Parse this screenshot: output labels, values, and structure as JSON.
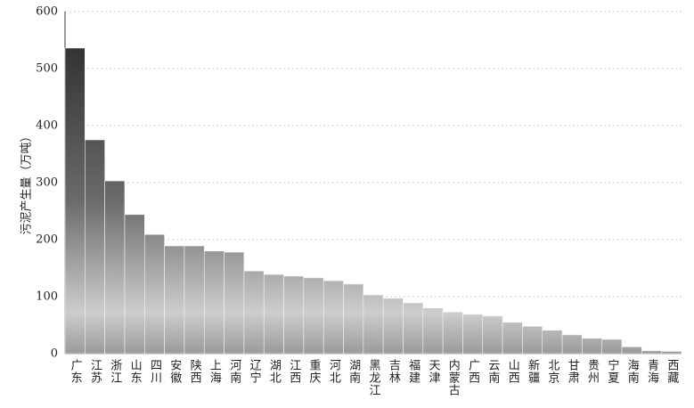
{
  "chart_data": {
    "type": "bar",
    "y_label": "污泥产生量（万吨）",
    "categories": [
      "广东",
      "江苏",
      "浙江",
      "山东",
      "四川",
      "安徽",
      "陕西",
      "上海",
      "河南",
      "辽宁",
      "湖北",
      "江西",
      "重庆",
      "河北",
      "湖南",
      "黑龙江",
      "吉林",
      "福建",
      "天津",
      "内蒙古",
      "广西",
      "云南",
      "山西",
      "新疆",
      "北京",
      "甘肃",
      "贵州",
      "宁夏",
      "海南",
      "青海",
      "西藏"
    ],
    "values": [
      536,
      375,
      303,
      244,
      209,
      189,
      189,
      180,
      178,
      145,
      139,
      136,
      133,
      128,
      122,
      103,
      97,
      89,
      80,
      73,
      69,
      66,
      55,
      48,
      41,
      33,
      27,
      25,
      12,
      5,
      4
    ],
    "ylim": [
      0,
      600
    ],
    "yticks": [
      0,
      100,
      200,
      300,
      400,
      500,
      600
    ],
    "grid": true
  }
}
